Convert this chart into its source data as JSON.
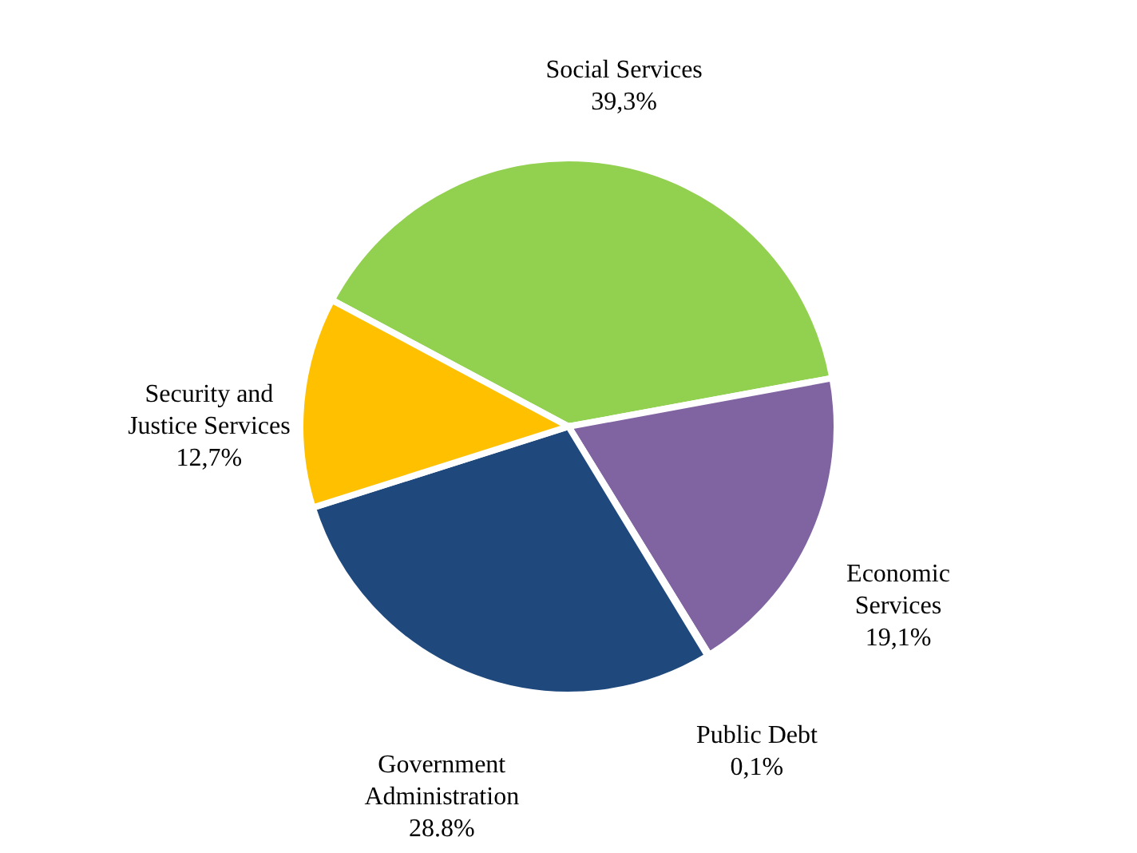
{
  "chart_data": {
    "type": "pie",
    "categories": [
      "Social Services",
      "Economic Services",
      "Public Debt",
      "Government Administration",
      "Security and Justice Services"
    ],
    "values": [
      39.3,
      19.1,
      0.1,
      28.8,
      12.7
    ],
    "value_labels": [
      "39,3%",
      "19,1%",
      "0,1%",
      "28.8%",
      "12,7%"
    ],
    "colors": [
      "#92d050",
      "#8064a2",
      "#4bacc6",
      "#1f497d",
      "#ffc000"
    ],
    "legend": false
  }
}
